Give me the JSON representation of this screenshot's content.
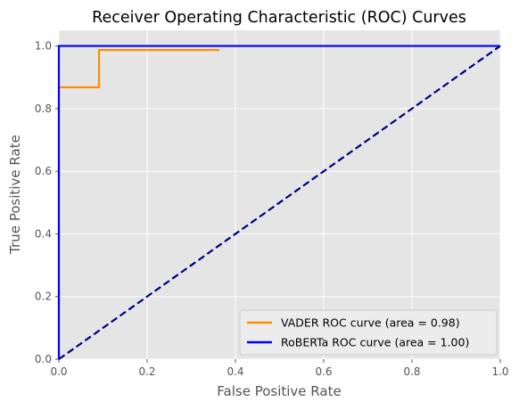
{
  "chart_data": {
    "type": "line",
    "title": "Receiver Operating Characteristic (ROC) Curves",
    "xlabel": "False Positive Rate",
    "ylabel": "True Positive Rate",
    "xlim": [
      0.0,
      1.0
    ],
    "ylim": [
      0.0,
      1.05
    ],
    "x_ticks": [
      "0.0",
      "0.2",
      "0.4",
      "0.6",
      "0.8",
      "1.0"
    ],
    "y_ticks": [
      "0.0",
      "0.2",
      "0.4",
      "0.6",
      "0.8",
      "1.0"
    ],
    "grid": true,
    "legend_position": "lower-right",
    "background_color": "#e5e5e5",
    "grid_color": "#ffffff",
    "series": [
      {
        "name": "VADER ROC curve (area = 0.98)",
        "color": "#ff8c00",
        "style": "solid",
        "x": [
          0.0,
          0.0,
          0.091,
          0.091,
          0.364
        ],
        "y": [
          0.0,
          0.868,
          0.868,
          0.987,
          0.987
        ]
      },
      {
        "name": "RoBERTa ROC curve (area = 1.00)",
        "color": "#0000ff",
        "style": "solid",
        "x": [
          0.0,
          0.0,
          1.0
        ],
        "y": [
          0.0,
          1.0,
          1.0
        ]
      },
      {
        "name": "",
        "color": "#000080",
        "style": "dashed",
        "x": [
          0.0,
          1.0
        ],
        "y": [
          0.0,
          1.0
        ]
      }
    ]
  }
}
